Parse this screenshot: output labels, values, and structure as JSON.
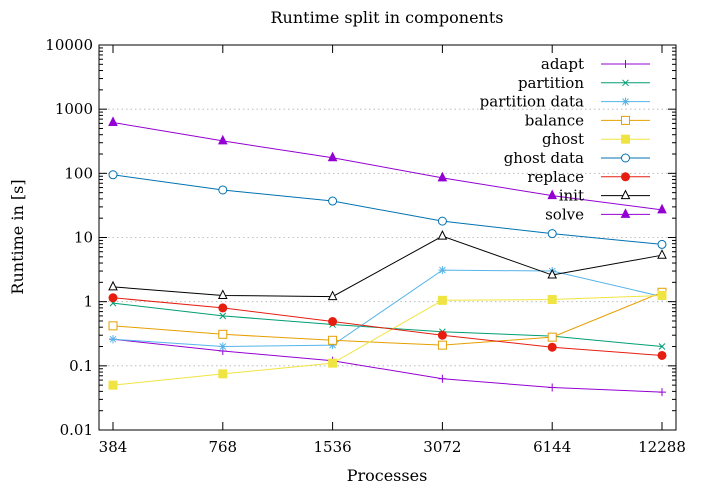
{
  "chart_data": {
    "type": "line",
    "title": "Runtime split in components",
    "xlabel": "Processes",
    "ylabel": "Runtime in [s]",
    "x": [
      384,
      768,
      1536,
      3072,
      6144,
      12288
    ],
    "x_tick_labels": [
      "384",
      "768",
      "1536",
      "3072",
      "6144",
      "12288"
    ],
    "y_scale": "log",
    "ylim": [
      0.01,
      10000
    ],
    "y_tick_labels": [
      "0.01",
      "0.1",
      "1",
      "10",
      "100",
      "1000",
      "10000"
    ],
    "grid": "horizontal dotted",
    "legend_position": "top-right",
    "series": [
      {
        "name": "adapt",
        "color": "#9400d3",
        "marker": "plus",
        "values": [
          0.26,
          0.17,
          0.12,
          0.063,
          0.046,
          0.039
        ]
      },
      {
        "name": "partition",
        "color": "#009e73",
        "marker": "cross",
        "values": [
          0.95,
          0.6,
          0.44,
          0.34,
          0.29,
          0.2
        ]
      },
      {
        "name": "partition data",
        "color": "#56b4e9",
        "marker": "star",
        "values": [
          0.26,
          0.2,
          0.21,
          3.1,
          3.0,
          1.2
        ]
      },
      {
        "name": "balance",
        "color": "#e69f00",
        "marker": "open-square",
        "values": [
          0.42,
          0.31,
          0.25,
          0.21,
          0.28,
          1.4
        ]
      },
      {
        "name": "ghost",
        "color": "#f0e442",
        "marker": "filled-square",
        "values": [
          0.05,
          0.075,
          0.11,
          1.05,
          1.08,
          1.25
        ]
      },
      {
        "name": "ghost data",
        "color": "#0072b2",
        "marker": "open-circle",
        "values": [
          95,
          55,
          37,
          18,
          11.5,
          7.8
        ]
      },
      {
        "name": "replace",
        "color": "#e51e10",
        "marker": "filled-circle",
        "values": [
          1.15,
          0.8,
          0.49,
          0.3,
          0.195,
          0.145
        ]
      },
      {
        "name": "init",
        "color": "#000000",
        "marker": "open-triangle",
        "values": [
          1.7,
          1.25,
          1.2,
          10.5,
          2.6,
          5.3
        ]
      },
      {
        "name": "solve",
        "color": "#9400d3",
        "marker": "filled-triangle",
        "values": [
          620,
          320,
          175,
          85,
          45,
          27
        ]
      }
    ]
  }
}
